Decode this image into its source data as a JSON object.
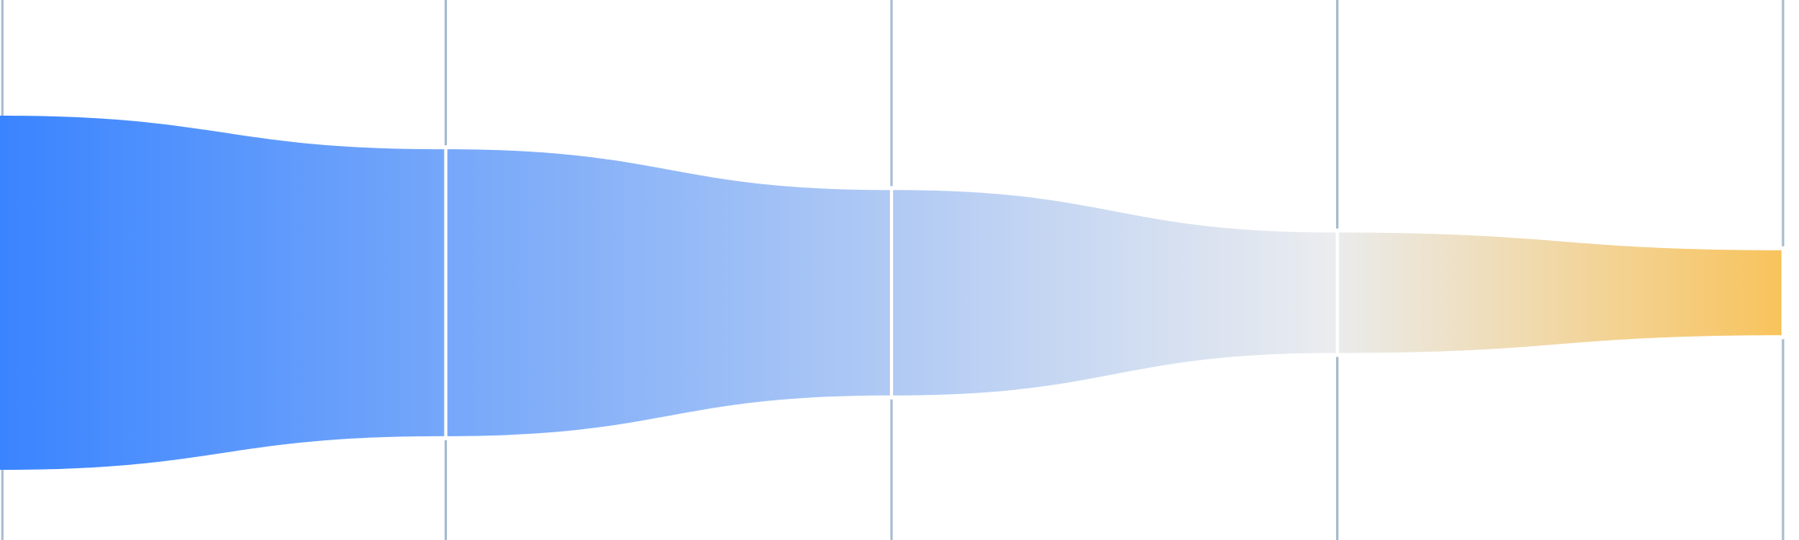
{
  "chart_data": {
    "type": "funnel",
    "orientation": "horizontal",
    "stages": [
      {
        "value": 100
      },
      {
        "value": 81
      },
      {
        "value": 58
      },
      {
        "value": 34
      },
      {
        "value": 24
      }
    ],
    "legend": "none",
    "grid": false,
    "colors": {
      "start": "#3a84ff",
      "middle": "#eaecef",
      "end": "#f8c35c",
      "divider": "#a7bcd0"
    }
  }
}
